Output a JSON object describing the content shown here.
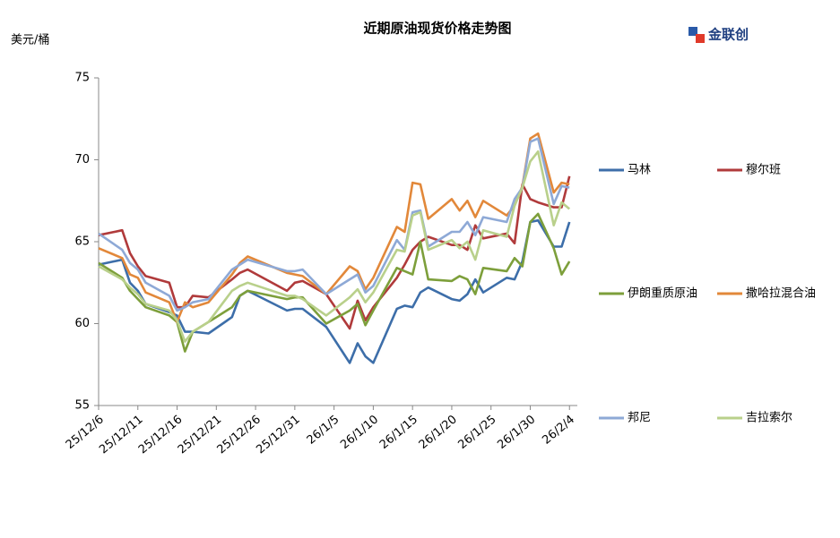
{
  "chart_data": {
    "type": "line",
    "title": "近期原油现货价格走势图",
    "y_label": "美元/桶",
    "logo": "金联创",
    "x": [
      "25/12/6",
      "25/12/9",
      "25/12/10",
      "25/12/11",
      "25/12/12",
      "25/12/15",
      "25/12/16",
      "25/12/17",
      "25/12/18",
      "25/12/20",
      "25/12/23",
      "25/12/24",
      "25/12/25",
      "25/12/30",
      "25/12/31",
      "26/1/1",
      "26/1/4",
      "26/1/7",
      "26/1/8",
      "26/1/9",
      "26/1/10",
      "26/1/13",
      "26/1/14",
      "26/1/15",
      "26/1/16",
      "26/1/17",
      "26/1/20",
      "26/1/21",
      "26/1/22",
      "26/1/23",
      "26/1/24",
      "26/1/27",
      "26/1/28",
      "26/1/29",
      "26/1/30",
      "26/1/31",
      "26/2/2",
      "26/2/3",
      "26/2/4"
    ],
    "series": [
      {
        "name": "马林",
        "color": "#3d6ea9",
        "values": [
          63.6,
          63.9,
          62.5,
          62.0,
          61.2,
          60.7,
          60.5,
          59.5,
          59.5,
          59.4,
          60.4,
          61.7,
          62.0,
          60.8,
          60.9,
          60.9,
          59.8,
          57.6,
          58.8,
          58.0,
          57.6,
          60.9,
          61.1,
          61.0,
          61.9,
          62.2,
          61.5,
          61.4,
          61.8,
          62.7,
          61.9,
          62.8,
          62.7,
          63.8,
          66.2,
          66.3,
          64.7,
          64.7,
          66.2
        ]
      },
      {
        "name": "穆尔班",
        "color": "#b03a3b",
        "values": [
          65.4,
          65.7,
          64.3,
          63.5,
          62.9,
          62.5,
          61.0,
          61.0,
          61.7,
          61.6,
          62.7,
          63.1,
          63.3,
          62.0,
          62.5,
          62.6,
          61.8,
          59.7,
          61.4,
          60.2,
          61.0,
          62.8,
          63.6,
          64.5,
          65.0,
          65.3,
          64.8,
          64.8,
          64.5,
          66.0,
          65.2,
          65.5,
          64.9,
          68.5,
          67.6,
          67.4,
          67.1,
          67.1,
          69.0
        ]
      },
      {
        "name": "伊朗重质原油",
        "color": "#7d9f3b",
        "values": [
          63.7,
          62.8,
          62.0,
          61.5,
          61.0,
          60.5,
          60.1,
          58.3,
          59.5,
          60.1,
          61.0,
          61.7,
          62.0,
          61.5,
          61.6,
          61.6,
          60.0,
          60.8,
          61.2,
          59.9,
          60.8,
          63.4,
          63.2,
          63.0,
          65.0,
          62.7,
          62.6,
          62.9,
          62.7,
          61.8,
          63.4,
          63.2,
          64.0,
          63.5,
          66.2,
          66.7,
          64.6,
          63.0,
          63.8
        ]
      },
      {
        "name": "撒哈拉混合油",
        "color": "#e2883a",
        "values": [
          64.6,
          64.0,
          63.0,
          62.8,
          61.9,
          61.3,
          60.1,
          61.3,
          61.0,
          61.3,
          63.0,
          63.7,
          64.1,
          63.1,
          63.0,
          62.9,
          61.8,
          63.5,
          63.2,
          62.1,
          62.8,
          65.9,
          65.6,
          68.6,
          68.5,
          66.4,
          67.6,
          66.9,
          67.5,
          66.5,
          67.5,
          66.6,
          67.2,
          68.4,
          71.3,
          71.6,
          68.0,
          68.6,
          68.5
        ]
      },
      {
        "name": "邦尼",
        "color": "#8ea9d6",
        "values": [
          65.5,
          64.5,
          63.7,
          63.3,
          62.5,
          61.7,
          60.8,
          61.0,
          61.3,
          61.5,
          63.3,
          63.6,
          63.9,
          63.2,
          63.2,
          63.3,
          61.8,
          62.7,
          63.0,
          61.9,
          62.3,
          65.1,
          64.5,
          66.8,
          66.9,
          64.7,
          65.6,
          65.6,
          66.2,
          65.4,
          66.5,
          66.2,
          67.6,
          68.3,
          71.1,
          71.3,
          67.3,
          68.4,
          68.3
        ]
      },
      {
        "name": "吉拉索尔",
        "color": "#b9d08b",
        "values": [
          63.5,
          62.7,
          62.2,
          61.8,
          61.2,
          60.8,
          60.2,
          58.9,
          59.5,
          60.1,
          62.0,
          62.3,
          62.5,
          61.7,
          61.7,
          61.5,
          60.5,
          61.6,
          62.1,
          61.3,
          61.9,
          64.5,
          64.4,
          66.6,
          66.8,
          64.5,
          65.1,
          64.6,
          65.0,
          63.9,
          65.7,
          65.3,
          67.2,
          68.3,
          69.9,
          70.5,
          66.0,
          67.4,
          67.0
        ]
      }
    ],
    "xlim": [
      "25/12/6",
      "26/2/5"
    ],
    "xticks": [
      "25/12/6",
      "25/12/11",
      "25/12/16",
      "25/12/21",
      "25/12/26",
      "25/12/31",
      "26/1/5",
      "26/1/10",
      "26/1/15",
      "26/1/20",
      "26/1/25",
      "26/1/30",
      "26/2/4"
    ],
    "ylim": [
      55,
      75
    ],
    "yticks": [
      55,
      60,
      65,
      70,
      75
    ],
    "grid": false,
    "legend": "right"
  }
}
